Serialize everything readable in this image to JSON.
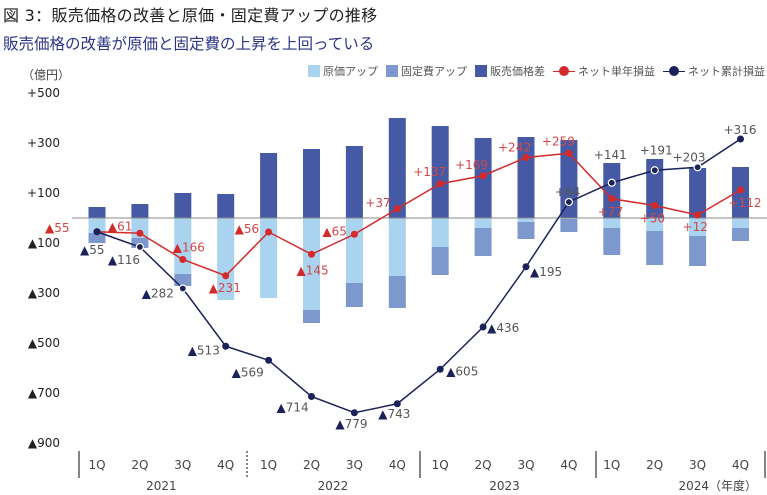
{
  "title": "図 3：販売価格の改善と原価・固定費アップの推移",
  "subtitle": "販売価格の改善が原価と固定費の上昇を上回っている",
  "chart_data": {
    "type": "bar",
    "title": "図 3：販売価格の改善と原価・固定費アップの推移",
    "ylabel": "（億円）",
    "xlabel_suffix": "（年度）",
    "ylim": [
      -900,
      500
    ],
    "y_ticks": [
      500,
      300,
      100,
      -100,
      -300,
      -500,
      -700,
      -900
    ],
    "y_tick_labels": [
      "+500",
      "+300",
      "+100",
      "▲100",
      "▲300",
      "▲500",
      "▲700",
      "▲900"
    ],
    "grid": false,
    "legend_position": "top-right",
    "quarters": [
      "1Q",
      "2Q",
      "3Q",
      "4Q",
      "1Q",
      "2Q",
      "3Q",
      "4Q",
      "1Q",
      "2Q",
      "3Q",
      "4Q",
      "1Q",
      "2Q",
      "3Q",
      "4Q"
    ],
    "years": [
      "2021",
      "2022",
      "2023",
      "2024（年度）"
    ],
    "series": [
      {
        "name": "原価アップ",
        "type": "bar",
        "color": "#a9d3ef",
        "values": [
          -60,
          -80,
          -224,
          -328,
          -320,
          -368,
          -260,
          -232,
          -116,
          -40,
          -16,
          -4,
          -40,
          -52,
          -72,
          -40
        ]
      },
      {
        "name": "固定費アップ",
        "type": "bar",
        "color": "#7d98cc",
        "values": [
          -40,
          -40,
          -48,
          0,
          0,
          -52,
          -96,
          -128,
          -112,
          -112,
          -68,
          -52,
          -108,
          -136,
          -120,
          -52
        ]
      },
      {
        "name": "販売価格差",
        "type": "bar",
        "color": "#4659a5",
        "values": [
          44,
          56,
          100,
          96,
          260,
          276,
          288,
          400,
          368,
          320,
          324,
          312,
          220,
          236,
          200,
          204
        ]
      },
      {
        "name": "ネット単年損益",
        "type": "line",
        "color": "#d42a2a",
        "values": [
          -55,
          -61,
          -166,
          -231,
          -56,
          -145,
          -65,
          37,
          137,
          169,
          242,
          259,
          77,
          50,
          12,
          112
        ]
      },
      {
        "name": "ネット累計損益",
        "type": "line",
        "color": "#1b2259",
        "values": [
          -55,
          -116,
          -282,
          -513,
          -569,
          -714,
          -779,
          -743,
          -605,
          -436,
          -195,
          64,
          141,
          191,
          203,
          316
        ]
      }
    ]
  }
}
